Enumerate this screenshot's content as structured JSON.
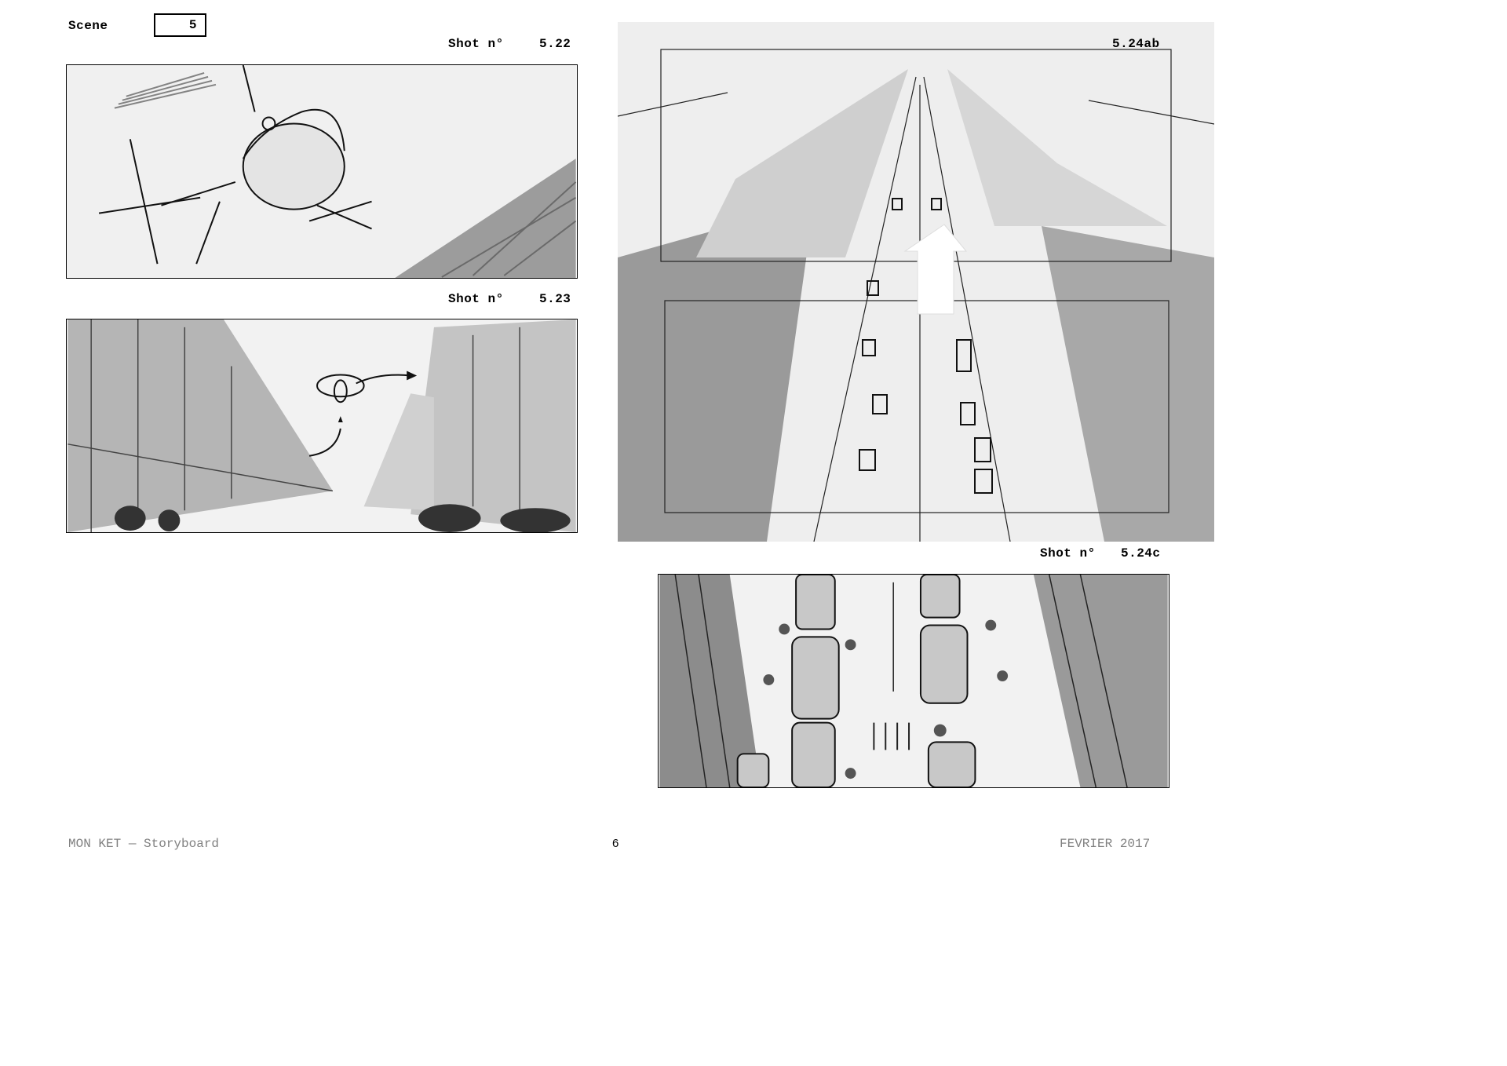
{
  "header": {
    "scene_label": "Scene",
    "scene_number": "5"
  },
  "shots": [
    {
      "prefix": "Shot n°",
      "number": "5.22",
      "icon": "helicopter-sketch"
    },
    {
      "prefix": "Shot n°",
      "number": "5.23",
      "icon": "street-helicopter-sketch"
    },
    {
      "prefix": "",
      "number": "5.24ab",
      "icon": "aerial-street-sketch"
    },
    {
      "prefix": "Shot n°",
      "number": "5.24c",
      "icon": "top-down-traffic-sketch"
    }
  ],
  "footer": {
    "title": "MON KET — Storyboard",
    "page_number": "6",
    "date": "FEVRIER 2017"
  }
}
